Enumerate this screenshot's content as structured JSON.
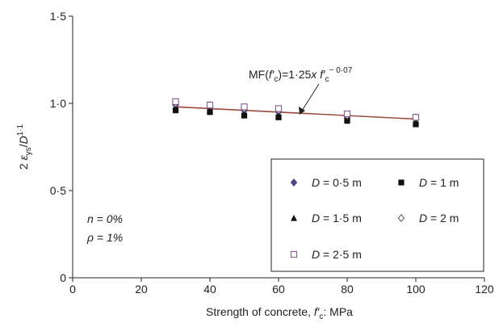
{
  "chart_data": {
    "type": "scatter",
    "xlabel": "Strength of concrete, f′c: MPa",
    "xlabel_parts": {
      "before": "Strength of concrete, ",
      "var": "f′",
      "sub": "c",
      "after": ": MPa"
    },
    "ylabel_parts": {
      "prefix": "2 ",
      "var": "ε",
      "sub": "ys",
      "slash": "/",
      "den": "D",
      "sup": "1·1"
    },
    "xlim": [
      0,
      120
    ],
    "ylim": [
      0,
      1.5
    ],
    "x_ticks": [
      0,
      20,
      40,
      60,
      80,
      100,
      120
    ],
    "y_ticks": [
      {
        "value": 0,
        "label": "0"
      },
      {
        "value": 0.5,
        "label": "0·5"
      },
      {
        "value": 1.0,
        "label": "1·0"
      },
      {
        "value": 1.5,
        "label": "1·5"
      }
    ],
    "grid": false,
    "legend_position": "bottom-right",
    "x": [
      30,
      40,
      50,
      60,
      80,
      100
    ],
    "series": [
      {
        "name": "D = 0·5 m",
        "marker": "diamond-filled",
        "color": "#4a4a8a",
        "values": [
          0.99,
          0.98,
          0.96,
          0.95,
          0.92,
          0.91
        ]
      },
      {
        "name": "D = 1 m",
        "marker": "square-filled",
        "color": "#111111",
        "values": [
          0.96,
          0.95,
          0.93,
          0.92,
          0.9,
          0.88
        ]
      },
      {
        "name": "D = 1·5 m",
        "marker": "triangle-filled",
        "color": "#111111",
        "values": [
          0.97,
          0.96,
          0.94,
          0.93,
          0.91,
          0.89
        ]
      },
      {
        "name": "D = 2 m",
        "marker": "diamond-open",
        "color": "#555555",
        "values": [
          1.0,
          0.99,
          0.97,
          0.96,
          0.93,
          0.92
        ]
      },
      {
        "name": "D = 2·5 m",
        "marker": "square-open",
        "color": "#7a4a86",
        "values": [
          1.01,
          0.99,
          0.98,
          0.97,
          0.94,
          0.92
        ]
      }
    ],
    "fit_line": {
      "x": [
        30,
        100
      ],
      "y": [
        0.98,
        0.91
      ],
      "color": "#9a4a3a"
    },
    "annotations": {
      "equation": {
        "prefix": "MF(",
        "var": "f′",
        "sub": "c",
        "mid": ")=1·25",
        "x_char": "x ",
        "var2": "f′",
        "sub2": "c",
        "sup2": "− 0·07"
      },
      "n_text": "n = 0%",
      "rho_text": "ρ = 1%"
    }
  }
}
